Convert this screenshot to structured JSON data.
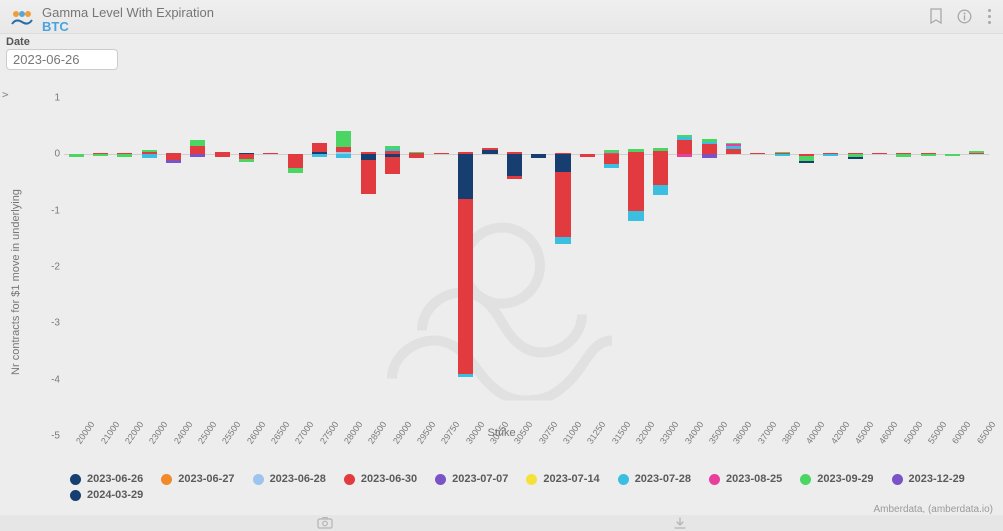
{
  "header": {
    "title": "Gamma Level With Expiration",
    "subtitle": "BTC"
  },
  "controls": {
    "date_label": "Date",
    "date_value": "2023-06-26"
  },
  "chart": {
    "type": "stacked-bar",
    "background_color": "#ededed",
    "grid_color": "#dcdcdc",
    "baseline_color": "#cfcfcf",
    "y_axis_title": "Nr contracts for $1 move in underlying",
    "x_axis_title": "Strike",
    "ylim": [
      -5,
      1
    ],
    "ytick_step": 1,
    "yticks": [
      1,
      0,
      -1,
      -2,
      -3,
      -4,
      -5
    ],
    "ytick_labels": [
      "1",
      "0",
      "-1",
      "-2",
      "-3",
      "-4",
      "-5"
    ],
    "text_color": "#7a7a7a",
    "label_fontsize": 10,
    "axis_title_fontsize": 11,
    "bar_width": 0.62,
    "categories": [
      "20000",
      "21000",
      "22000",
      "23000",
      "24000",
      "25000",
      "25500",
      "26000",
      "26500",
      "27000",
      "27500",
      "28000",
      "28500",
      "29000",
      "29500",
      "29750",
      "30000",
      "30250",
      "30500",
      "30750",
      "31000",
      "31250",
      "31500",
      "32000",
      "33000",
      "34000",
      "35000",
      "36000",
      "37000",
      "38000",
      "40000",
      "42000",
      "45000",
      "46000",
      "50000",
      "55000",
      "60000",
      "65000"
    ],
    "series_colors": {
      "2023-06-26": "#173e70",
      "2023-06-27": "#f08a2a",
      "2023-06-28": "#9cc4ec",
      "2023-06-30": "#e23b3f",
      "2023-07-07": "#7a54c7",
      "2023-07-14": "#f4e23a",
      "2023-07-28": "#3bbfe0",
      "2023-08-25": "#e93f9c",
      "2023-09-29": "#4bd563",
      "2023-12-29": "#7a54c7",
      "2024-03-29": "#173e70"
    },
    "series_order": [
      "2023-06-26",
      "2023-06-27",
      "2023-06-28",
      "2023-06-30",
      "2023-07-07",
      "2023-07-14",
      "2023-07-28",
      "2023-08-25",
      "2023-09-29",
      "2023-12-29",
      "2024-03-29"
    ],
    "data": {
      "20000": {
        "pos": {},
        "neg": {
          "2023-09-29": -0.04
        }
      },
      "21000": {
        "pos": {
          "2023-06-30": 0.02
        },
        "neg": {
          "2023-09-29": -0.03
        }
      },
      "22000": {
        "pos": {
          "2023-06-30": 0.03
        },
        "neg": {
          "2023-09-29": -0.04
        }
      },
      "23000": {
        "pos": {
          "2023-06-30": 0.05,
          "2023-09-29": 0.03
        },
        "neg": {
          "2023-07-28": -0.06
        }
      },
      "24000": {
        "pos": {
          "2023-06-30": 0.03
        },
        "neg": {
          "2023-06-30": -0.1,
          "2023-12-29": -0.06
        }
      },
      "25000": {
        "pos": {
          "2023-06-30": 0.15,
          "2023-09-29": 0.1
        },
        "neg": {
          "2023-07-07": -0.04
        }
      },
      "25500": {
        "pos": {
          "2023-06-30": 0.05
        },
        "neg": {
          "2023-06-30": -0.05
        }
      },
      "26000": {
        "pos": {
          "2023-06-26": 0.02
        },
        "neg": {
          "2023-06-30": -0.08,
          "2023-09-29": -0.05
        }
      },
      "26500": {
        "pos": {
          "2023-06-30": 0.03
        },
        "neg": {}
      },
      "27000": {
        "pos": {},
        "neg": {
          "2023-06-30": -0.25,
          "2023-09-29": -0.08
        }
      },
      "27500": {
        "pos": {
          "2023-06-30": 0.15,
          "2023-06-26": 0.05
        },
        "neg": {
          "2023-07-28": -0.05
        }
      },
      "28000": {
        "pos": {
          "2023-09-29": 0.28,
          "2023-06-30": 0.08,
          "2023-06-28": 0.05
        },
        "neg": {
          "2023-07-28": -0.06
        }
      },
      "28500": {
        "pos": {
          "2023-06-30": 0.05
        },
        "neg": {
          "2023-06-30": -0.6,
          "2023-06-26": -0.1
        }
      },
      "29000": {
        "pos": {
          "2023-06-30": 0.06,
          "2023-09-29": 0.05,
          "2023-07-28": 0.04
        },
        "neg": {
          "2023-06-30": -0.3,
          "2023-06-26": -0.05
        }
      },
      "29500": {
        "pos": {
          "2023-09-29": 0.03,
          "2023-06-30": 0.02
        },
        "neg": {
          "2023-06-30": -0.06
        }
      },
      "29750": {
        "pos": {
          "2023-06-30": 0.02
        },
        "neg": {}
      },
      "30000": {
        "pos": {
          "2023-06-30": 0.05
        },
        "neg": {
          "2023-06-30": -3.1,
          "2023-06-26": -0.8,
          "2023-07-28": -0.05
        }
      },
      "30250": {
        "pos": {
          "2023-06-26": 0.08,
          "2023-06-30": 0.04
        },
        "neg": {}
      },
      "30500": {
        "pos": {
          "2023-06-30": 0.04
        },
        "neg": {
          "2023-06-26": -0.38,
          "2023-06-30": -0.06
        }
      },
      "30750": {
        "pos": {},
        "neg": {
          "2023-06-26": -0.06
        }
      },
      "31000": {
        "pos": {
          "2023-06-30": 0.03
        },
        "neg": {
          "2023-06-30": -1.15,
          "2023-06-26": -0.32,
          "2023-07-28": -0.12
        }
      },
      "31250": {
        "pos": {},
        "neg": {
          "2023-06-30": -0.05
        }
      },
      "31500": {
        "pos": {
          "2023-09-29": 0.04,
          "2023-08-25": 0.03
        },
        "neg": {
          "2023-06-30": -0.18,
          "2023-07-28": -0.06
        }
      },
      "32000": {
        "pos": {
          "2023-09-29": 0.06,
          "2023-06-30": 0.04
        },
        "neg": {
          "2023-06-30": -1.0,
          "2023-07-28": -0.18
        }
      },
      "33000": {
        "pos": {
          "2023-06-30": 0.06,
          "2023-09-29": 0.05
        },
        "neg": {
          "2023-06-30": -0.55,
          "2023-07-28": -0.18
        }
      },
      "34000": {
        "pos": {
          "2023-06-30": 0.25,
          "2023-07-28": 0.05,
          "2023-09-29": 0.05
        },
        "neg": {
          "2023-08-25": -0.05
        }
      },
      "35000": {
        "pos": {
          "2023-06-30": 0.18,
          "2023-09-29": 0.06,
          "2023-07-28": 0.04
        },
        "neg": {
          "2023-12-29": -0.07
        }
      },
      "36000": {
        "pos": {
          "2023-06-30": 0.1,
          "2023-07-28": 0.05,
          "2023-09-29": 0.03,
          "2023-08-25": 0.03
        },
        "neg": {}
      },
      "37000": {
        "pos": {
          "2023-06-30": 0.03
        },
        "neg": {}
      },
      "38000": {
        "pos": {
          "2023-06-30": 0.03,
          "2023-09-29": 0.02
        },
        "neg": {
          "2023-07-28": -0.03
        }
      },
      "40000": {
        "pos": {},
        "neg": {
          "2023-09-29": -0.08,
          "2024-03-29": -0.04,
          "2023-06-30": -0.03
        }
      },
      "42000": {
        "pos": {
          "2023-06-30": 0.02
        },
        "neg": {
          "2023-07-28": -0.03
        }
      },
      "45000": {
        "pos": {
          "2023-06-30": 0.02
        },
        "neg": {
          "2023-09-29": -0.05,
          "2024-03-29": -0.03
        }
      },
      "46000": {
        "pos": {
          "2023-06-30": 0.02
        },
        "neg": {}
      },
      "50000": {
        "pos": {
          "2023-06-30": 0.02
        },
        "neg": {
          "2023-09-29": -0.04
        }
      },
      "55000": {
        "pos": {
          "2023-06-30": 0.02
        },
        "neg": {
          "2023-09-29": -0.03
        }
      },
      "60000": {
        "pos": {},
        "neg": {
          "2023-09-29": -0.03
        }
      },
      "65000": {
        "pos": {
          "2023-06-30": 0.03,
          "2023-09-29": 0.03
        },
        "neg": {}
      }
    }
  },
  "legend_order": [
    "2023-06-26",
    "2023-06-27",
    "2023-06-28",
    "2023-06-30",
    "2023-07-07",
    "2023-07-14",
    "2023-07-28",
    "2023-08-25",
    "2023-09-29",
    "2023-12-29",
    "2024-03-29"
  ],
  "attribution": "Amberdata, (amberdata.io)"
}
